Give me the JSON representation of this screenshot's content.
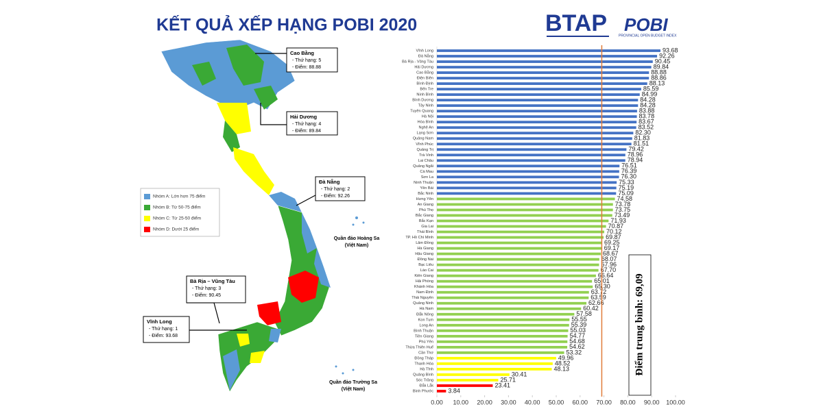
{
  "header": {
    "title": "KẾT QUẢ XẾP HẠNG POBI 2020",
    "logo_btap": "BTAP",
    "logo_pobi": "POBI",
    "logo_pobi_sub": "PROVINCIAL OPEN BUDGET INDEX"
  },
  "map": {
    "legend": [
      {
        "label": "Nhóm A: Lớn hơn 75 điểm",
        "color": "#5b9bd5"
      },
      {
        "label": "Nhóm B: Từ 50-75 điểm",
        "color": "#3aa935"
      },
      {
        "label": "Nhóm C: Từ 25-50 điểm",
        "color": "#ffff00"
      },
      {
        "label": "Nhóm D: Dưới 25 điểm",
        "color": "#ff0000"
      }
    ],
    "callouts": [
      {
        "name": "Cao Bằng",
        "rank": "- Thứ hạng: 5",
        "score": "- Điểm: 88.88"
      },
      {
        "name": "Hải Dương",
        "rank": "- Thứ hạng: 4",
        "score": "- Điểm: 89.84"
      },
      {
        "name": "Đà Nẵng",
        "rank": "- Thứ hạng: 2",
        "score": "- Điểm: 92.26"
      },
      {
        "name": "Bà Rịa – Vũng Tàu",
        "rank": "- Thứ hạng: 3",
        "score": "- Điểm: 90.45"
      },
      {
        "name": "Vĩnh Long",
        "rank": "- Thứ hạng: 1",
        "score": "- Điểm: 93.68"
      }
    ],
    "islands": [
      {
        "name": "Quần đảo Hoàng Sa",
        "note": "(Việt Nam)"
      },
      {
        "name": "Quần đảo Trường Sa",
        "note": "(Việt Nam)"
      }
    ]
  },
  "chart_data": {
    "type": "bar",
    "orientation": "horizontal",
    "categories": [
      "Vĩnh Long",
      "Đà Nẵng",
      "Bà Rịa - Vũng Tàu",
      "Hải Dương",
      "Cao Bằng",
      "Điện Biên",
      "Bình Định",
      "Bến Tre",
      "Ninh Bình",
      "Bình Dương",
      "Tây Ninh",
      "Tuyên Quang",
      "Hà Nội",
      "Hòa Bình",
      "Nghệ An",
      "Lạng Sơn",
      "Quảng Nam",
      "Vĩnh Phúc",
      "Quảng Trị",
      "Trà Vinh",
      "Lai Châu",
      "Quảng Ngãi",
      "Cà Mau",
      "Sơn La",
      "Ninh Thuận",
      "Yên Bái",
      "Bắc Ninh",
      "Hưng Yên",
      "An Giang",
      "Phú Thọ",
      "Bắc Giang",
      "Bắc Kạn",
      "Gia Lai",
      "Thái Bình",
      "TP. Hồ Chí Minh",
      "Lâm Đồng",
      "Hà Giang",
      "Hậu Giang",
      "Đồng Nai",
      "Bạc Liêu",
      "Lào Cai",
      "Kiên Giang",
      "Hải Phòng",
      "Khánh Hòa",
      "Nam Định",
      "Thái Nguyên",
      "Quảng Ninh",
      "Hà Nam",
      "Đắk Nông",
      "Kon Tum",
      "Long An",
      "Bình Thuận",
      "Tiền Giang",
      "Phú Yên",
      "Thừa Thiên Huế",
      "Cần Thơ",
      "Đồng Tháp",
      "Thanh Hóa",
      "Hà Tĩnh",
      "Quảng Bình",
      "Sóc Trăng",
      "Đắk Lắk",
      "Bình Phước"
    ],
    "values": [
      93.68,
      92.26,
      90.45,
      89.84,
      88.88,
      88.86,
      88.13,
      85.59,
      84.99,
      84.28,
      84.28,
      83.88,
      83.78,
      83.67,
      83.52,
      82.3,
      81.83,
      81.51,
      79.42,
      78.96,
      78.94,
      76.51,
      76.39,
      76.3,
      75.33,
      75.19,
      75.09,
      74.58,
      73.78,
      73.75,
      73.49,
      71.93,
      70.87,
      70.12,
      69.87,
      69.25,
      69.17,
      68.67,
      68.07,
      67.96,
      67.7,
      66.64,
      65.01,
      65.3,
      63.72,
      63.59,
      62.66,
      60.42,
      57.58,
      55.55,
      55.39,
      55.03,
      54.77,
      54.68,
      54.62,
      53.32,
      49.96,
      48.52,
      48.13,
      30.41,
      25.71,
      23.41,
      3.84
    ],
    "value_labels": [
      "93.68",
      "92.26",
      "90.45",
      "89.84",
      "88.88",
      "88.86",
      "88.13",
      "85.59",
      "84.99",
      "84.28",
      "84.28",
      "83.88",
      "83.78",
      "83.67",
      "83.52",
      "82.30",
      "81.83",
      "81.51",
      "79.42",
      "78.96",
      "78.94",
      "76.51",
      "76.39",
      "76.30",
      "75.33",
      "75.19",
      "75.09",
      "74.58",
      "73.78",
      "73.75",
      "73.49",
      "71.93",
      "70.87",
      "70.12",
      "69.87",
      "69.25",
      "69.17",
      "68.67",
      "68.07",
      "67.96",
      "67.70",
      "66.64",
      "65.01",
      "65.30",
      "63.72",
      "63.59",
      "62.66",
      "60.42",
      "57.58",
      "55.55",
      "55.39",
      "55.03",
      "54.77",
      "54.68",
      "54.62",
      "53.32",
      "49.96",
      "48.52",
      "48.13",
      "30.41",
      "25.71",
      "23.41",
      "3.84"
    ],
    "colors": [
      "#4472c4",
      "#4472c4",
      "#4472c4",
      "#4472c4",
      "#4472c4",
      "#4472c4",
      "#4472c4",
      "#4472c4",
      "#4472c4",
      "#4472c4",
      "#4472c4",
      "#4472c4",
      "#4472c4",
      "#4472c4",
      "#4472c4",
      "#4472c4",
      "#4472c4",
      "#4472c4",
      "#4472c4",
      "#4472c4",
      "#4472c4",
      "#4472c4",
      "#4472c4",
      "#4472c4",
      "#4472c4",
      "#4472c4",
      "#4472c4",
      "#92d050",
      "#92d050",
      "#92d050",
      "#92d050",
      "#92d050",
      "#92d050",
      "#92d050",
      "#92d050",
      "#92d050",
      "#92d050",
      "#92d050",
      "#92d050",
      "#92d050",
      "#92d050",
      "#92d050",
      "#92d050",
      "#92d050",
      "#92d050",
      "#92d050",
      "#92d050",
      "#92d050",
      "#92d050",
      "#92d050",
      "#92d050",
      "#92d050",
      "#92d050",
      "#92d050",
      "#92d050",
      "#92d050",
      "#ffff00",
      "#ffff00",
      "#ffff00",
      "#ffff00",
      "#ffff00",
      "#ff0000",
      "#ff0000"
    ],
    "xlim": [
      0,
      100
    ],
    "xticks": [
      {
        "value": 0,
        "label": "0.00"
      },
      {
        "value": 10,
        "label": "10.00"
      },
      {
        "value": 20,
        "label": "20.00"
      },
      {
        "value": 30,
        "label": "30.00"
      },
      {
        "value": 40,
        "label": "40.00"
      },
      {
        "value": 50,
        "label": "50.00"
      },
      {
        "value": 60,
        "label": "60.00"
      },
      {
        "value": 70,
        "label": "70.00"
      },
      {
        "value": 80,
        "label": "80.00"
      },
      {
        "value": 90,
        "label": "90.00"
      },
      {
        "value": 100,
        "label": "100.00"
      }
    ],
    "reference_line": {
      "value": 69.09,
      "label": "Điểm trung bình: 69,09",
      "color": "#e07b39"
    }
  }
}
